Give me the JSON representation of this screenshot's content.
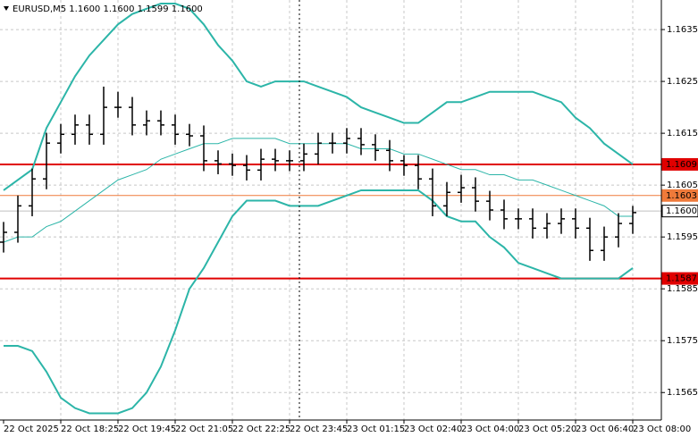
{
  "chart_data": {
    "type": "ohlc",
    "title": "EURUSD,M5  1.1600 1.1600 1.1599 1.1600",
    "x": [
      "22 Oct 2025",
      null,
      null,
      null,
      "22 Oct 18:25",
      null,
      null,
      null,
      "22 Oct 19:45",
      null,
      null,
      null,
      "22 Oct 21:05",
      null,
      null,
      null,
      "22 Oct 22:25",
      null,
      null,
      null,
      "22 Oct 23:45",
      null,
      null,
      null,
      "23 Oct 01:15",
      null,
      null,
      null,
      "23 Oct 02:40",
      null,
      null,
      null,
      "23 Oct 04:00",
      null,
      null,
      null,
      "23 Oct 05:20",
      null,
      null,
      null,
      "23 Oct 06:40",
      null,
      null,
      null,
      "23 Oct 08:00"
    ],
    "ohlc": {
      "color": "#000000",
      "open": [
        1.1594,
        1.15959,
        1.1601,
        1.16062,
        1.16131,
        1.16148,
        1.16166,
        1.16148,
        1.162,
        1.162,
        1.16166,
        1.16174,
        1.16166,
        1.16148,
        1.16145,
        1.16097,
        1.16091,
        1.16088,
        1.16079,
        1.161,
        1.16097,
        1.16097,
        1.1611,
        1.16131,
        1.16131,
        1.1614,
        1.16128,
        1.16117,
        1.16097,
        1.16088,
        1.16062,
        1.1601,
        1.16036,
        1.16045,
        1.16019,
        1.16002,
        1.15985,
        1.15985,
        1.15967,
        1.15976,
        1.15985,
        1.15967,
        1.15924,
        1.1595,
        1.15976
      ],
      "high": [
        1.15979,
        1.1603,
        1.16082,
        1.16151,
        1.16168,
        1.16186,
        1.16186,
        1.1624,
        1.1623,
        1.1622,
        1.16194,
        1.16194,
        1.16186,
        1.16168,
        1.16165,
        1.16117,
        1.16111,
        1.16108,
        1.1612,
        1.1612,
        1.16117,
        1.1613,
        1.16151,
        1.16151,
        1.1616,
        1.1616,
        1.16148,
        1.16137,
        1.16108,
        1.16108,
        1.16082,
        1.16056,
        1.1607,
        1.16065,
        1.16039,
        1.16022,
        1.16005,
        1.16005,
        1.15996,
        1.16005,
        1.16005,
        1.15987,
        1.1597,
        1.15996,
        1.1601
      ],
      "low": [
        1.1592,
        1.15939,
        1.1599,
        1.16042,
        1.16111,
        1.16128,
        1.16128,
        1.16128,
        1.1618,
        1.16146,
        1.16146,
        1.16146,
        1.16128,
        1.16125,
        1.16077,
        1.16071,
        1.16068,
        1.16059,
        1.16059,
        1.16077,
        1.16077,
        1.16077,
        1.1609,
        1.16111,
        1.16111,
        1.16108,
        1.16097,
        1.16077,
        1.16068,
        1.16042,
        1.1599,
        1.1599,
        1.16016,
        1.15999,
        1.15982,
        1.15965,
        1.15965,
        1.15947,
        1.15947,
        1.15956,
        1.15947,
        1.15904,
        1.15904,
        1.1593,
        1.15956
      ],
      "close": [
        1.15959,
        1.1601,
        1.16062,
        1.16131,
        1.16148,
        1.16166,
        1.16148,
        1.162,
        1.162,
        1.16166,
        1.16174,
        1.16166,
        1.16148,
        1.16145,
        1.16097,
        1.16091,
        1.16088,
        1.16079,
        1.161,
        1.16097,
        1.16097,
        1.1611,
        1.16131,
        1.16131,
        1.1614,
        1.16128,
        1.16117,
        1.16097,
        1.16088,
        1.16062,
        1.1601,
        1.16036,
        1.16045,
        1.16019,
        1.16002,
        1.15985,
        1.15985,
        1.15967,
        1.15976,
        1.15985,
        1.15967,
        1.15924,
        1.1595,
        1.15976,
        1.15997
      ]
    },
    "bands": {
      "color": "#2cb5a8",
      "upper": [
        1.1604,
        1.1606,
        1.1608,
        1.1616,
        1.1621,
        1.1626,
        1.163,
        1.1633,
        1.1636,
        1.1638,
        1.1639,
        1.164,
        1.164,
        1.1639,
        1.1636,
        1.1632,
        1.1629,
        1.1625,
        1.1624,
        1.1625,
        1.1625,
        1.1625,
        1.1624,
        1.1623,
        1.1622,
        1.162,
        1.1619,
        1.1618,
        1.1617,
        1.1617,
        1.1619,
        1.1621,
        1.1621,
        1.1622,
        1.1623,
        1.1623,
        1.1623,
        1.1623,
        1.1622,
        1.1621,
        1.1618,
        1.1616,
        1.1613,
        1.1611,
        1.1609
      ],
      "middle": [
        1.1594,
        1.1595,
        1.1595,
        1.1597,
        1.1598,
        1.16,
        1.1602,
        1.1604,
        1.1606,
        1.1607,
        1.1608,
        1.161,
        1.1611,
        1.1612,
        1.1613,
        1.1613,
        1.1614,
        1.1614,
        1.1614,
        1.1614,
        1.1613,
        1.1613,
        1.1613,
        1.1613,
        1.1613,
        1.1612,
        1.1612,
        1.1612,
        1.1611,
        1.1611,
        1.161,
        1.1609,
        1.1608,
        1.1608,
        1.1607,
        1.1607,
        1.1606,
        1.1606,
        1.1605,
        1.1604,
        1.1603,
        1.1602,
        1.1601,
        1.1599,
        1.1599
      ],
      "lower": [
        1.1574,
        1.1574,
        1.1573,
        1.1569,
        1.1564,
        1.1562,
        1.1561,
        1.1561,
        1.1561,
        1.1562,
        1.1565,
        1.157,
        1.1577,
        1.1585,
        1.1589,
        1.1594,
        1.1599,
        1.1602,
        1.1602,
        1.1602,
        1.1601,
        1.1601,
        1.1601,
        1.1602,
        1.1603,
        1.1604,
        1.1604,
        1.1604,
        1.1604,
        1.1604,
        1.1602,
        1.1599,
        1.1598,
        1.1598,
        1.1595,
        1.1593,
        1.159,
        1.1589,
        1.1588,
        1.1587,
        1.1587,
        1.1587,
        1.1587,
        1.1587,
        1.1589
      ]
    },
    "levels": [
      {
        "value": 1.1609,
        "color": "#e00000"
      },
      {
        "value": 1.1603,
        "color": "#ef7a3a"
      },
      {
        "value": 1.16,
        "label": "1.1600",
        "color": "#c0c0c0"
      },
      {
        "value": 1.1587,
        "color": "#e00000"
      }
    ],
    "ylim": [
      1.15597,
      1.16407
    ],
    "yticks": [
      1.1565,
      1.1575,
      1.1585,
      1.1595,
      1.1605,
      1.1615,
      1.1625,
      1.1635
    ],
    "grid": true
  }
}
